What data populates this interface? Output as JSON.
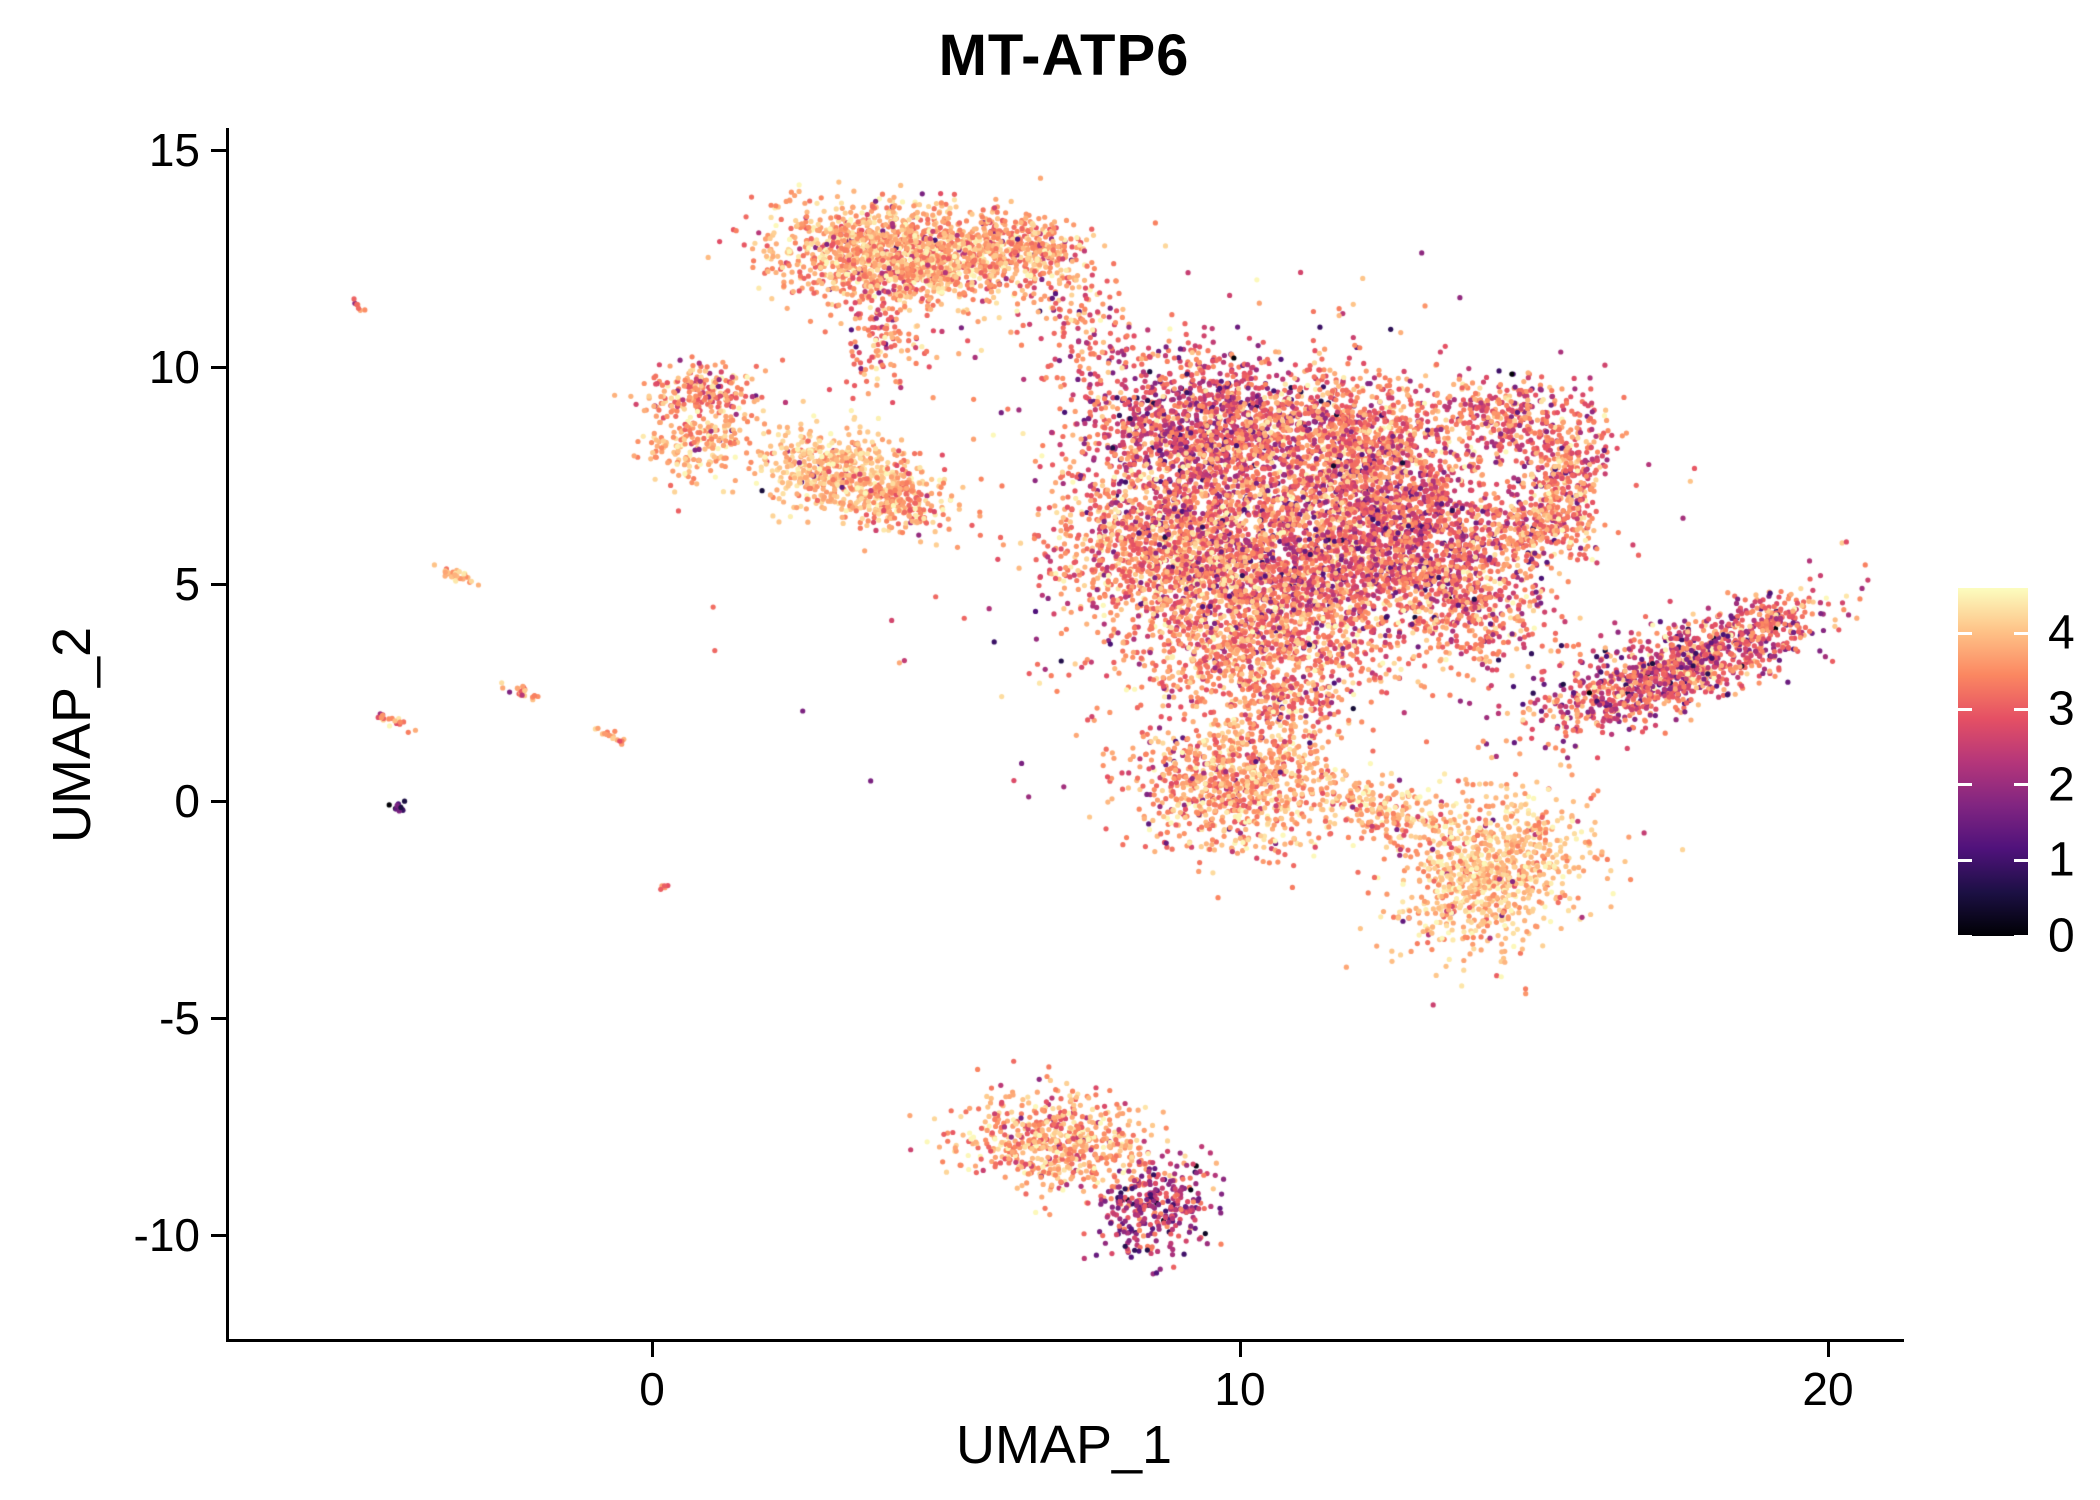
{
  "figure": {
    "background": "#FFFFFF",
    "axis_color": "#000000",
    "text_color": "#000000"
  },
  "chart_data": {
    "type": "scatter",
    "title": "MT-ATP6",
    "xlabel": "UMAP_1",
    "ylabel": "UMAP_2",
    "xlim": [
      -7.2,
      21.3
    ],
    "ylim": [
      -12.4,
      15.5
    ],
    "x_ticks": [
      0,
      10,
      20
    ],
    "y_ticks": [
      -10,
      -5,
      0,
      5,
      10,
      15
    ],
    "grid": false,
    "point_radius_px": 2.6,
    "seed": 42,
    "legend": {
      "position": "right",
      "min": 0,
      "max": 4.6,
      "ticks": [
        0,
        1,
        2,
        3,
        4
      ],
      "colormap": "magma",
      "stops": [
        {
          "t": 0.0,
          "color": "#000004"
        },
        {
          "t": 0.125,
          "color": "#1C1044"
        },
        {
          "t": 0.25,
          "color": "#4F127B"
        },
        {
          "t": 0.375,
          "color": "#812581"
        },
        {
          "t": 0.5,
          "color": "#B5367A"
        },
        {
          "t": 0.625,
          "color": "#E55064"
        },
        {
          "t": 0.75,
          "color": "#FB8761"
        },
        {
          "t": 0.875,
          "color": "#FEC287"
        },
        {
          "t": 1.0,
          "color": "#FCFDBF"
        }
      ]
    },
    "clusters": [
      {
        "name": "top-blob-main",
        "cx": 4.2,
        "cy": 12.6,
        "sx": 1.05,
        "sy": 0.55,
        "rot": -5,
        "n": 1500,
        "em": 3.8,
        "es": 0.45,
        "df": 0.04,
        "dm": 2.2
      },
      {
        "name": "top-blob-right",
        "cx": 6.3,
        "cy": 12.7,
        "sx": 0.65,
        "sy": 0.4,
        "rot": -15,
        "n": 350,
        "em": 3.7,
        "es": 0.5,
        "df": 0.05,
        "dm": 2.0
      },
      {
        "name": "top-blob-neck",
        "cx": 3.9,
        "cy": 10.8,
        "sx": 0.45,
        "sy": 0.7,
        "rot": 0,
        "n": 160,
        "em": 3.4,
        "es": 0.55,
        "df": 0.05,
        "dm": 2.0
      },
      {
        "name": "top-bridge",
        "cx": 7.3,
        "cy": 11.2,
        "sx": 0.5,
        "sy": 0.55,
        "rot": 35,
        "n": 80,
        "em": 3.3,
        "es": 0.6,
        "df": 0.08,
        "dm": 1.5
      },
      {
        "name": "left-small-upper",
        "cx": 0.85,
        "cy": 9.4,
        "sx": 0.5,
        "sy": 0.35,
        "rot": 0,
        "n": 230,
        "em": 3.5,
        "es": 0.5,
        "df": 0.06,
        "dm": 2.0
      },
      {
        "name": "left-small-lower",
        "cx": 0.75,
        "cy": 8.2,
        "sx": 0.5,
        "sy": 0.38,
        "rot": 10,
        "n": 190,
        "em": 3.9,
        "es": 0.4,
        "df": 0.03,
        "dm": 2.2
      },
      {
        "name": "midleft-light",
        "cx": 3.1,
        "cy": 7.7,
        "sx": 0.72,
        "sy": 0.5,
        "rot": -20,
        "n": 560,
        "em": 4.0,
        "es": 0.35,
        "df": 0.03,
        "dm": 2.5
      },
      {
        "name": "midleft-lower",
        "cx": 4.05,
        "cy": 6.95,
        "sx": 0.5,
        "sy": 0.35,
        "rot": -20,
        "n": 260,
        "em": 3.7,
        "es": 0.45,
        "df": 0.04,
        "dm": 2.2
      },
      {
        "name": "central-upper-dark",
        "cx": 9.2,
        "cy": 8.6,
        "sx": 1.0,
        "sy": 0.95,
        "rot": 0,
        "n": 1250,
        "em": 2.9,
        "es": 0.65,
        "df": 0.15,
        "dm": 1.8
      },
      {
        "name": "central-upper-right",
        "cx": 11.8,
        "cy": 8.2,
        "sx": 1.2,
        "sy": 0.9,
        "rot": 0,
        "n": 1300,
        "em": 3.4,
        "es": 0.6,
        "df": 0.08,
        "dm": 2.0
      },
      {
        "name": "central-mid-left",
        "cx": 8.6,
        "cy": 5.9,
        "sx": 0.9,
        "sy": 1.0,
        "rot": 0,
        "n": 1100,
        "em": 3.5,
        "es": 0.6,
        "df": 0.06,
        "dm": 2.0
      },
      {
        "name": "central-core",
        "cx": 10.8,
        "cy": 5.6,
        "sx": 1.2,
        "sy": 1.1,
        "rot": 0,
        "n": 1600,
        "em": 3.3,
        "es": 0.65,
        "df": 0.1,
        "dm": 1.9
      },
      {
        "name": "central-right-dark",
        "cx": 12.9,
        "cy": 6.1,
        "sx": 0.9,
        "sy": 1.0,
        "rot": 0,
        "n": 1200,
        "em": 3.0,
        "es": 0.6,
        "df": 0.12,
        "dm": 1.8
      },
      {
        "name": "central-lower",
        "cx": 10.2,
        "cy": 3.6,
        "sx": 1.1,
        "sy": 0.75,
        "rot": 0,
        "n": 800,
        "em": 3.5,
        "es": 0.55,
        "df": 0.06,
        "dm": 2.0
      },
      {
        "name": "central-right-ext",
        "cx": 13.9,
        "cy": 4.6,
        "sx": 0.7,
        "sy": 0.8,
        "rot": 0,
        "n": 420,
        "em": 3.4,
        "es": 0.6,
        "df": 0.08,
        "dm": 2.0
      },
      {
        "name": "right-hook-top",
        "cx": 14.6,
        "cy": 8.9,
        "sx": 0.7,
        "sy": 0.45,
        "rot": -20,
        "n": 300,
        "em": 3.2,
        "es": 0.6,
        "df": 0.1,
        "dm": 1.8
      },
      {
        "name": "right-hook-side",
        "cx": 15.5,
        "cy": 7.3,
        "sx": 0.38,
        "sy": 0.85,
        "rot": -10,
        "n": 350,
        "em": 3.3,
        "es": 0.6,
        "df": 0.08,
        "dm": 1.9
      },
      {
        "name": "right-hook-low",
        "cx": 15.1,
        "cy": 6.3,
        "sx": 0.5,
        "sy": 0.4,
        "rot": 0,
        "n": 200,
        "em": 3.5,
        "es": 0.5,
        "df": 0.06,
        "dm": 2.0
      },
      {
        "name": "farright-band",
        "cx": 17.3,
        "cy": 3.0,
        "sx": 1.3,
        "sy": 0.45,
        "rot": 28,
        "n": 1050,
        "em": 3.0,
        "es": 0.7,
        "df": 0.15,
        "dm": 1.7
      },
      {
        "name": "farright-tip",
        "cx": 19.0,
        "cy": 4.1,
        "sx": 0.45,
        "sy": 0.3,
        "rot": 28,
        "n": 150,
        "em": 3.2,
        "es": 0.6,
        "df": 0.1,
        "dm": 1.8
      },
      {
        "name": "below-central",
        "cx": 9.9,
        "cy": 0.4,
        "sx": 0.85,
        "sy": 0.8,
        "rot": 0,
        "n": 900,
        "em": 3.7,
        "es": 0.5,
        "df": 0.05,
        "dm": 2.2
      },
      {
        "name": "below-central-bridge",
        "cx": 10.8,
        "cy": 2.2,
        "sx": 0.6,
        "sy": 0.5,
        "rot": 0,
        "n": 200,
        "em": 3.5,
        "es": 0.6,
        "df": 0.06,
        "dm": 2.0
      },
      {
        "name": "lowerright-blob",
        "cx": 14.2,
        "cy": -1.6,
        "sx": 0.75,
        "sy": 0.95,
        "rot": -30,
        "n": 900,
        "em": 4.0,
        "es": 0.4,
        "df": 0.04,
        "dm": 2.3
      },
      {
        "name": "lowerright-bridge",
        "cx": 12.4,
        "cy": -0.2,
        "sx": 0.85,
        "sy": 0.35,
        "rot": -25,
        "n": 260,
        "em": 3.8,
        "es": 0.45,
        "df": 0.04,
        "dm": 2.3
      },
      {
        "name": "bottom-cluster",
        "cx": 6.9,
        "cy": -7.9,
        "sx": 0.85,
        "sy": 0.55,
        "rot": -15,
        "n": 620,
        "em": 3.7,
        "es": 0.5,
        "df": 0.05,
        "dm": 2.2
      },
      {
        "name": "bottom-dark-tip",
        "cx": 8.5,
        "cy": -9.4,
        "sx": 0.5,
        "sy": 0.6,
        "rot": -30,
        "n": 300,
        "em": 2.5,
        "es": 0.6,
        "df": 0.3,
        "dm": 1.5
      },
      {
        "name": "streak-far-left-top",
        "cx": -5.0,
        "cy": 11.4,
        "sx": 0.12,
        "sy": 0.05,
        "rot": -25,
        "n": 8,
        "em": 3.3,
        "es": 0.4,
        "df": 0,
        "dm": 2.0
      },
      {
        "name": "streak-left-a",
        "cx": -3.35,
        "cy": 5.2,
        "sx": 0.2,
        "sy": 0.07,
        "rot": -30,
        "n": 30,
        "em": 3.8,
        "es": 0.4,
        "df": 0.05,
        "dm": 2.2
      },
      {
        "name": "streak-left-b",
        "cx": -2.2,
        "cy": 2.5,
        "sx": 0.16,
        "sy": 0.06,
        "rot": -30,
        "n": 22,
        "em": 3.5,
        "es": 0.4,
        "df": 0.05,
        "dm": 2.0
      },
      {
        "name": "streak-left-c",
        "cx": -4.45,
        "cy": 1.85,
        "sx": 0.18,
        "sy": 0.06,
        "rot": -25,
        "n": 20,
        "em": 3.5,
        "es": 0.5,
        "df": 0.05,
        "dm": 2.0
      },
      {
        "name": "streak-left-d",
        "cx": -0.65,
        "cy": 1.5,
        "sx": 0.16,
        "sy": 0.06,
        "rot": -20,
        "n": 16,
        "em": 3.6,
        "es": 0.4,
        "df": 0,
        "dm": 2.0
      },
      {
        "name": "dot-left-dark",
        "cx": -4.3,
        "cy": -0.1,
        "sx": 0.09,
        "sy": 0.08,
        "rot": 0,
        "n": 14,
        "em": 1.2,
        "es": 0.5,
        "df": 0.3,
        "dm": 0.4
      },
      {
        "name": "dot-left-low",
        "cx": 0.2,
        "cy": -2.0,
        "sx": 0.07,
        "sy": 0.05,
        "rot": 0,
        "n": 5,
        "em": 3.2,
        "es": 0.4,
        "df": 0,
        "dm": 2.0
      },
      {
        "name": "central-noise",
        "cx": 10.5,
        "cy": 6.0,
        "sx": 3.2,
        "sy": 2.8,
        "rot": 0,
        "n": 350,
        "em": 3.2,
        "es": 0.8,
        "df": 0.12,
        "dm": 1.2
      },
      {
        "name": "gap-sparse",
        "cx": 7.2,
        "cy": 10.5,
        "sx": 0.7,
        "sy": 0.7,
        "rot": 0,
        "n": 60,
        "em": 3.4,
        "es": 0.6,
        "df": 0.08,
        "dm": 1.5
      }
    ]
  }
}
